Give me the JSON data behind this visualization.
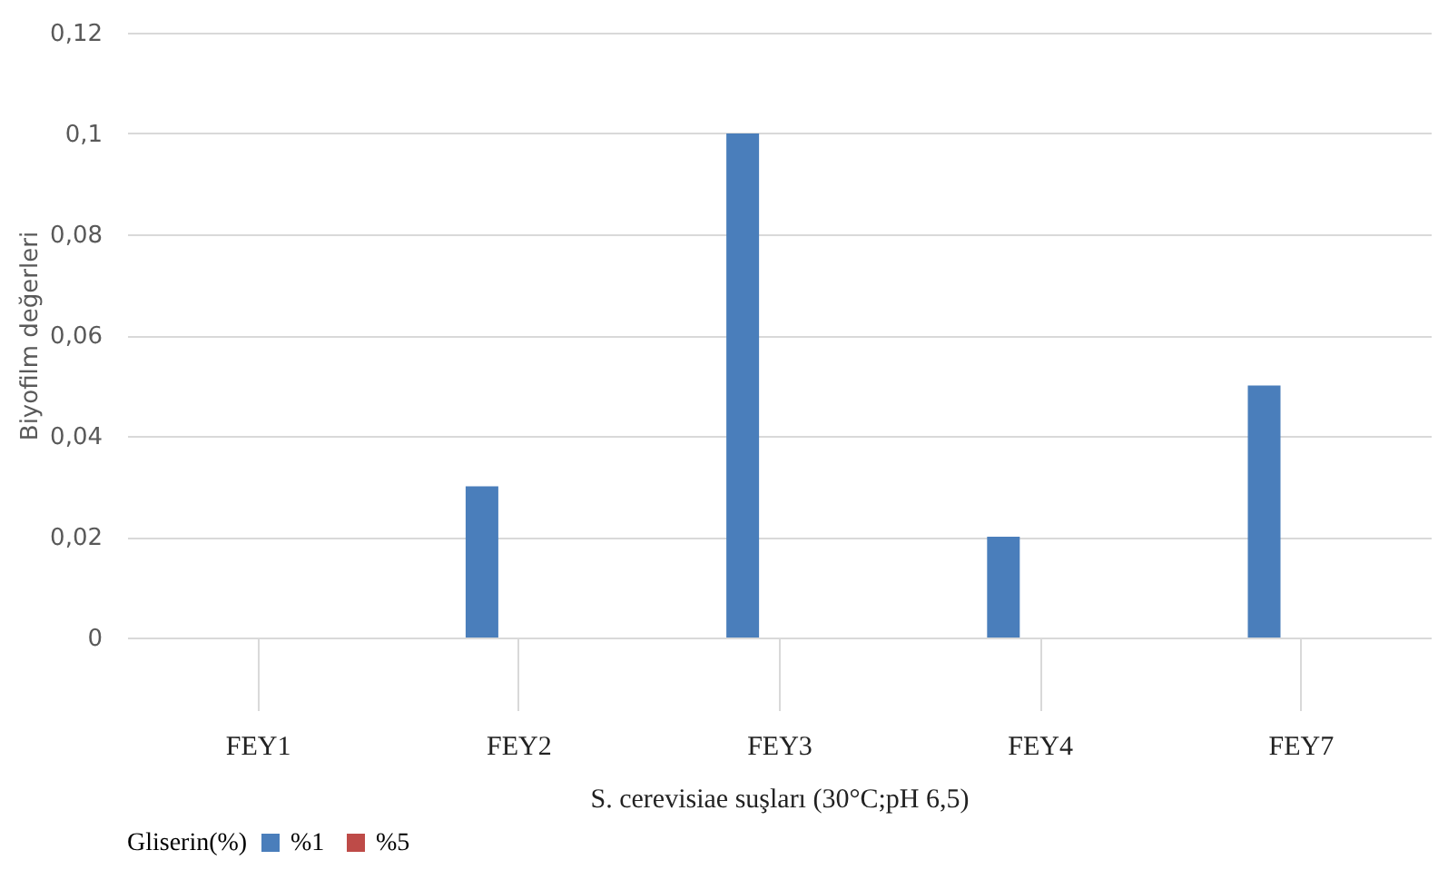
{
  "chart_data": {
    "type": "bar",
    "xlabel": "S. cerevisiae suşları (30°C;pH 6,5)",
    "ylabel": "Biyofilm değerleri",
    "legend_title": "Gliserin(%)",
    "categories": [
      "FEY1",
      "FEY2",
      "FEY3",
      "FEY4",
      "FEY7"
    ],
    "series": [
      {
        "name": "%1",
        "color": "#4a7ebb",
        "values": [
          0,
          0.03,
          0.1,
          0.02,
          0.05
        ]
      },
      {
        "name": "%5",
        "color": "#be4b48",
        "values": [
          0,
          0,
          0,
          0,
          0
        ]
      }
    ],
    "ylim": [
      0,
      0.12
    ],
    "yticks": [
      {
        "value": 0,
        "label": "0"
      },
      {
        "value": 0.02,
        "label": "0,02"
      },
      {
        "value": 0.04,
        "label": "0,04"
      },
      {
        "value": 0.06,
        "label": "0,06"
      },
      {
        "value": 0.08,
        "label": "0,08"
      },
      {
        "value": 0.1,
        "label": "0,1"
      },
      {
        "value": 0.12,
        "label": "0,12"
      }
    ],
    "grid": "y",
    "legend": "bottom"
  }
}
